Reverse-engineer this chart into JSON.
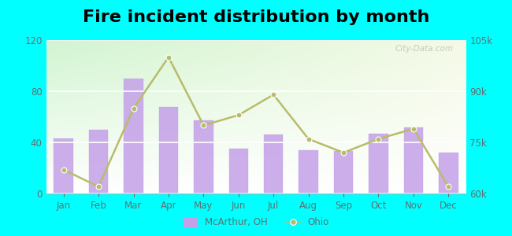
{
  "title": "Fire incident distribution by month",
  "months": [
    "Jan",
    "Feb",
    "Mar",
    "Apr",
    "May",
    "Jun",
    "Jul",
    "Aug",
    "Sep",
    "Oct",
    "Nov",
    "Dec"
  ],
  "mcarthur_values": [
    43,
    50,
    90,
    68,
    57,
    35,
    46,
    34,
    33,
    47,
    52,
    32
  ],
  "ohio_values": [
    67000,
    62000,
    85000,
    100000,
    80000,
    83000,
    89000,
    76000,
    72000,
    76000,
    79000,
    62000
  ],
  "bar_color": "#c4a0e8",
  "bar_edge_color": "#c4a0e8",
  "line_color": "#b8bc6a",
  "line_marker": "o",
  "left_ylim": [
    0,
    120
  ],
  "left_yticks": [
    0,
    40,
    80,
    120
  ],
  "right_ylim": [
    60000,
    105000
  ],
  "right_yticks": [
    60000,
    75000,
    90000,
    105000
  ],
  "right_yticklabels": [
    "60k",
    "75k",
    "90k",
    "105k"
  ],
  "bg_color_top": "#d8f0d0",
  "bg_color_bottom": "#f0faf0",
  "bg_color_right": "#f8f8f0",
  "outer_background": "#00ffff",
  "title_fontsize": 16,
  "tick_color": "#607070",
  "legend_mcarthur": "McArthur, OH",
  "legend_ohio": "Ohio",
  "watermark": "City-Data.com",
  "grid_color": "#e8e8e8"
}
